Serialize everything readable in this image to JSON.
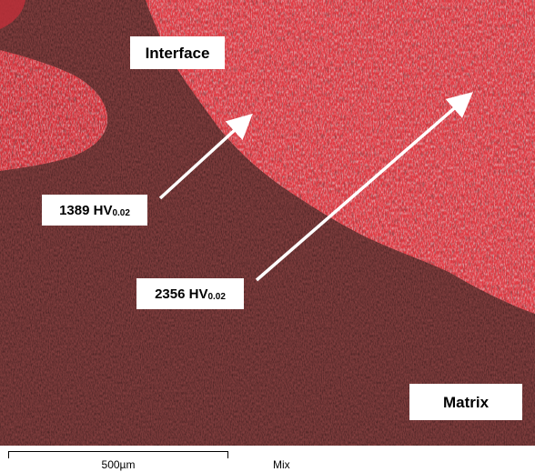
{
  "labels": {
    "interface": "Interface",
    "matrix": "Matrix",
    "hardness_1": {
      "value": "1389 HV",
      "subscript": "0.02"
    },
    "hardness_2": {
      "value": "2356 HV",
      "subscript": "0.02"
    }
  },
  "scale_bar": {
    "label": "500µm"
  },
  "channel_label": "Mix",
  "colors": {
    "phase_red": "#e8323c",
    "matrix_dark": "#1c1718",
    "arrow": "#ffffff"
  }
}
